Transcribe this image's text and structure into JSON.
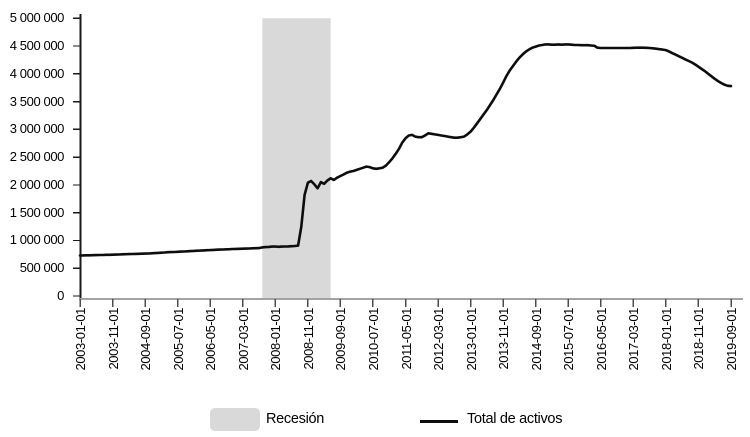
{
  "chart_data": {
    "type": "line",
    "title": "",
    "xlabel": "",
    "ylabel": "",
    "grid": false,
    "value_unit": "millions USD",
    "y_axis": {
      "min": 0,
      "max": 5000000,
      "tick_values": [
        0,
        500000,
        1000000,
        1500000,
        2000000,
        2500000,
        3000000,
        3500000,
        4000000,
        4500000,
        5000000
      ],
      "tick_labels": [
        "0",
        "500 000",
        "1 000 000",
        "1 500 000",
        "2 000 000",
        "2 500 000",
        "3 000 000",
        "3 500 000",
        "4 000 000",
        "4 500 000",
        "5 000 000"
      ]
    },
    "x_axis": {
      "start": "2003-01-01",
      "end": "2019-09-01",
      "frequency": "monthly",
      "tick_interval_months": 10,
      "tick_labels": [
        "2003-01-01",
        "2003-11-01",
        "2004-09-01",
        "2005-07-01",
        "2006-05-01",
        "2007-03-01",
        "2008-01-01",
        "2008-11-01",
        "2009-09-01",
        "2010-07-01",
        "2011-05-01",
        "2012-03-01",
        "2013-01-01",
        "2013-11-01",
        "2014-09-01",
        "2015-07-01",
        "2016-05-01",
        "2017-03-01",
        "2018-01-01",
        "2018-11-01",
        "2019-09-01"
      ]
    },
    "recession_band": {
      "label": "Recesión",
      "start": "2007-09-01",
      "end": "2009-06-01",
      "color": "#d9d9d9"
    },
    "series": [
      {
        "name": "Total de activos",
        "color": "#0d0d0d",
        "start": "2003-01-01",
        "frequency": "monthly",
        "values": [
          730000,
          731000,
          732000,
          733000,
          735000,
          736000,
          738000,
          739000,
          741000,
          742000,
          744000,
          746000,
          748000,
          750000,
          752000,
          754000,
          756000,
          758000,
          760000,
          762000,
          764000,
          766000,
          768000,
          772000,
          776000,
          780000,
          784000,
          788000,
          790000,
          793000,
          796000,
          799000,
          802000,
          805000,
          808000,
          812000,
          815000,
          818000,
          821000,
          824000,
          827000,
          830000,
          833000,
          836000,
          838000,
          840000,
          843000,
          846000,
          848000,
          850000,
          852000,
          854000,
          856000,
          858000,
          860000,
          863000,
          875000,
          880000,
          884000,
          890000,
          892000,
          886000,
          889000,
          891000,
          893000,
          896000,
          900000,
          908000,
          1250000,
          1820000,
          2040000,
          2070000,
          2010000,
          1940000,
          2050000,
          2020000,
          2080000,
          2120000,
          2090000,
          2130000,
          2160000,
          2190000,
          2220000,
          2240000,
          2250000,
          2270000,
          2290000,
          2310000,
          2330000,
          2320000,
          2300000,
          2290000,
          2300000,
          2310000,
          2350000,
          2410000,
          2480000,
          2560000,
          2650000,
          2760000,
          2840000,
          2890000,
          2900000,
          2870000,
          2860000,
          2860000,
          2890000,
          2930000,
          2920000,
          2910000,
          2900000,
          2890000,
          2880000,
          2870000,
          2860000,
          2850000,
          2850000,
          2860000,
          2870000,
          2910000,
          2960000,
          3030000,
          3110000,
          3190000,
          3270000,
          3350000,
          3440000,
          3530000,
          3630000,
          3730000,
          3840000,
          3960000,
          4060000,
          4140000,
          4220000,
          4290000,
          4350000,
          4400000,
          4440000,
          4470000,
          4490000,
          4510000,
          4520000,
          4530000,
          4530000,
          4525000,
          4525000,
          4530000,
          4525000,
          4530000,
          4530000,
          4525000,
          4520000,
          4520000,
          4515000,
          4515000,
          4515000,
          4510000,
          4505000,
          4470000,
          4465000,
          4465000,
          4465000,
          4465000,
          4465000,
          4465000,
          4465000,
          4465000,
          4465000,
          4465000,
          4468000,
          4470000,
          4470000,
          4470000,
          4468000,
          4465000,
          4460000,
          4452000,
          4444000,
          4436000,
          4428000,
          4400000,
          4372000,
          4344000,
          4316000,
          4288000,
          4260000,
          4232000,
          4204000,
          4168000,
          4128000,
          4088000,
          4048000,
          4000000,
          3955000,
          3910000,
          3870000,
          3835000,
          3805000,
          3785000,
          3780000
        ]
      }
    ],
    "legend": {
      "position": "bottom",
      "items": [
        {
          "label": "Recesión",
          "swatch": "area",
          "color": "#d9d9d9"
        },
        {
          "label": "Total de activos",
          "swatch": "line",
          "color": "#0d0d0d"
        }
      ]
    },
    "axis_colors": {
      "y_spine": "#1a1a1a",
      "x_spine": "#a3a3a3",
      "x_tick": "#4d4d4d",
      "y_tick": "#1a1a1a"
    }
  }
}
